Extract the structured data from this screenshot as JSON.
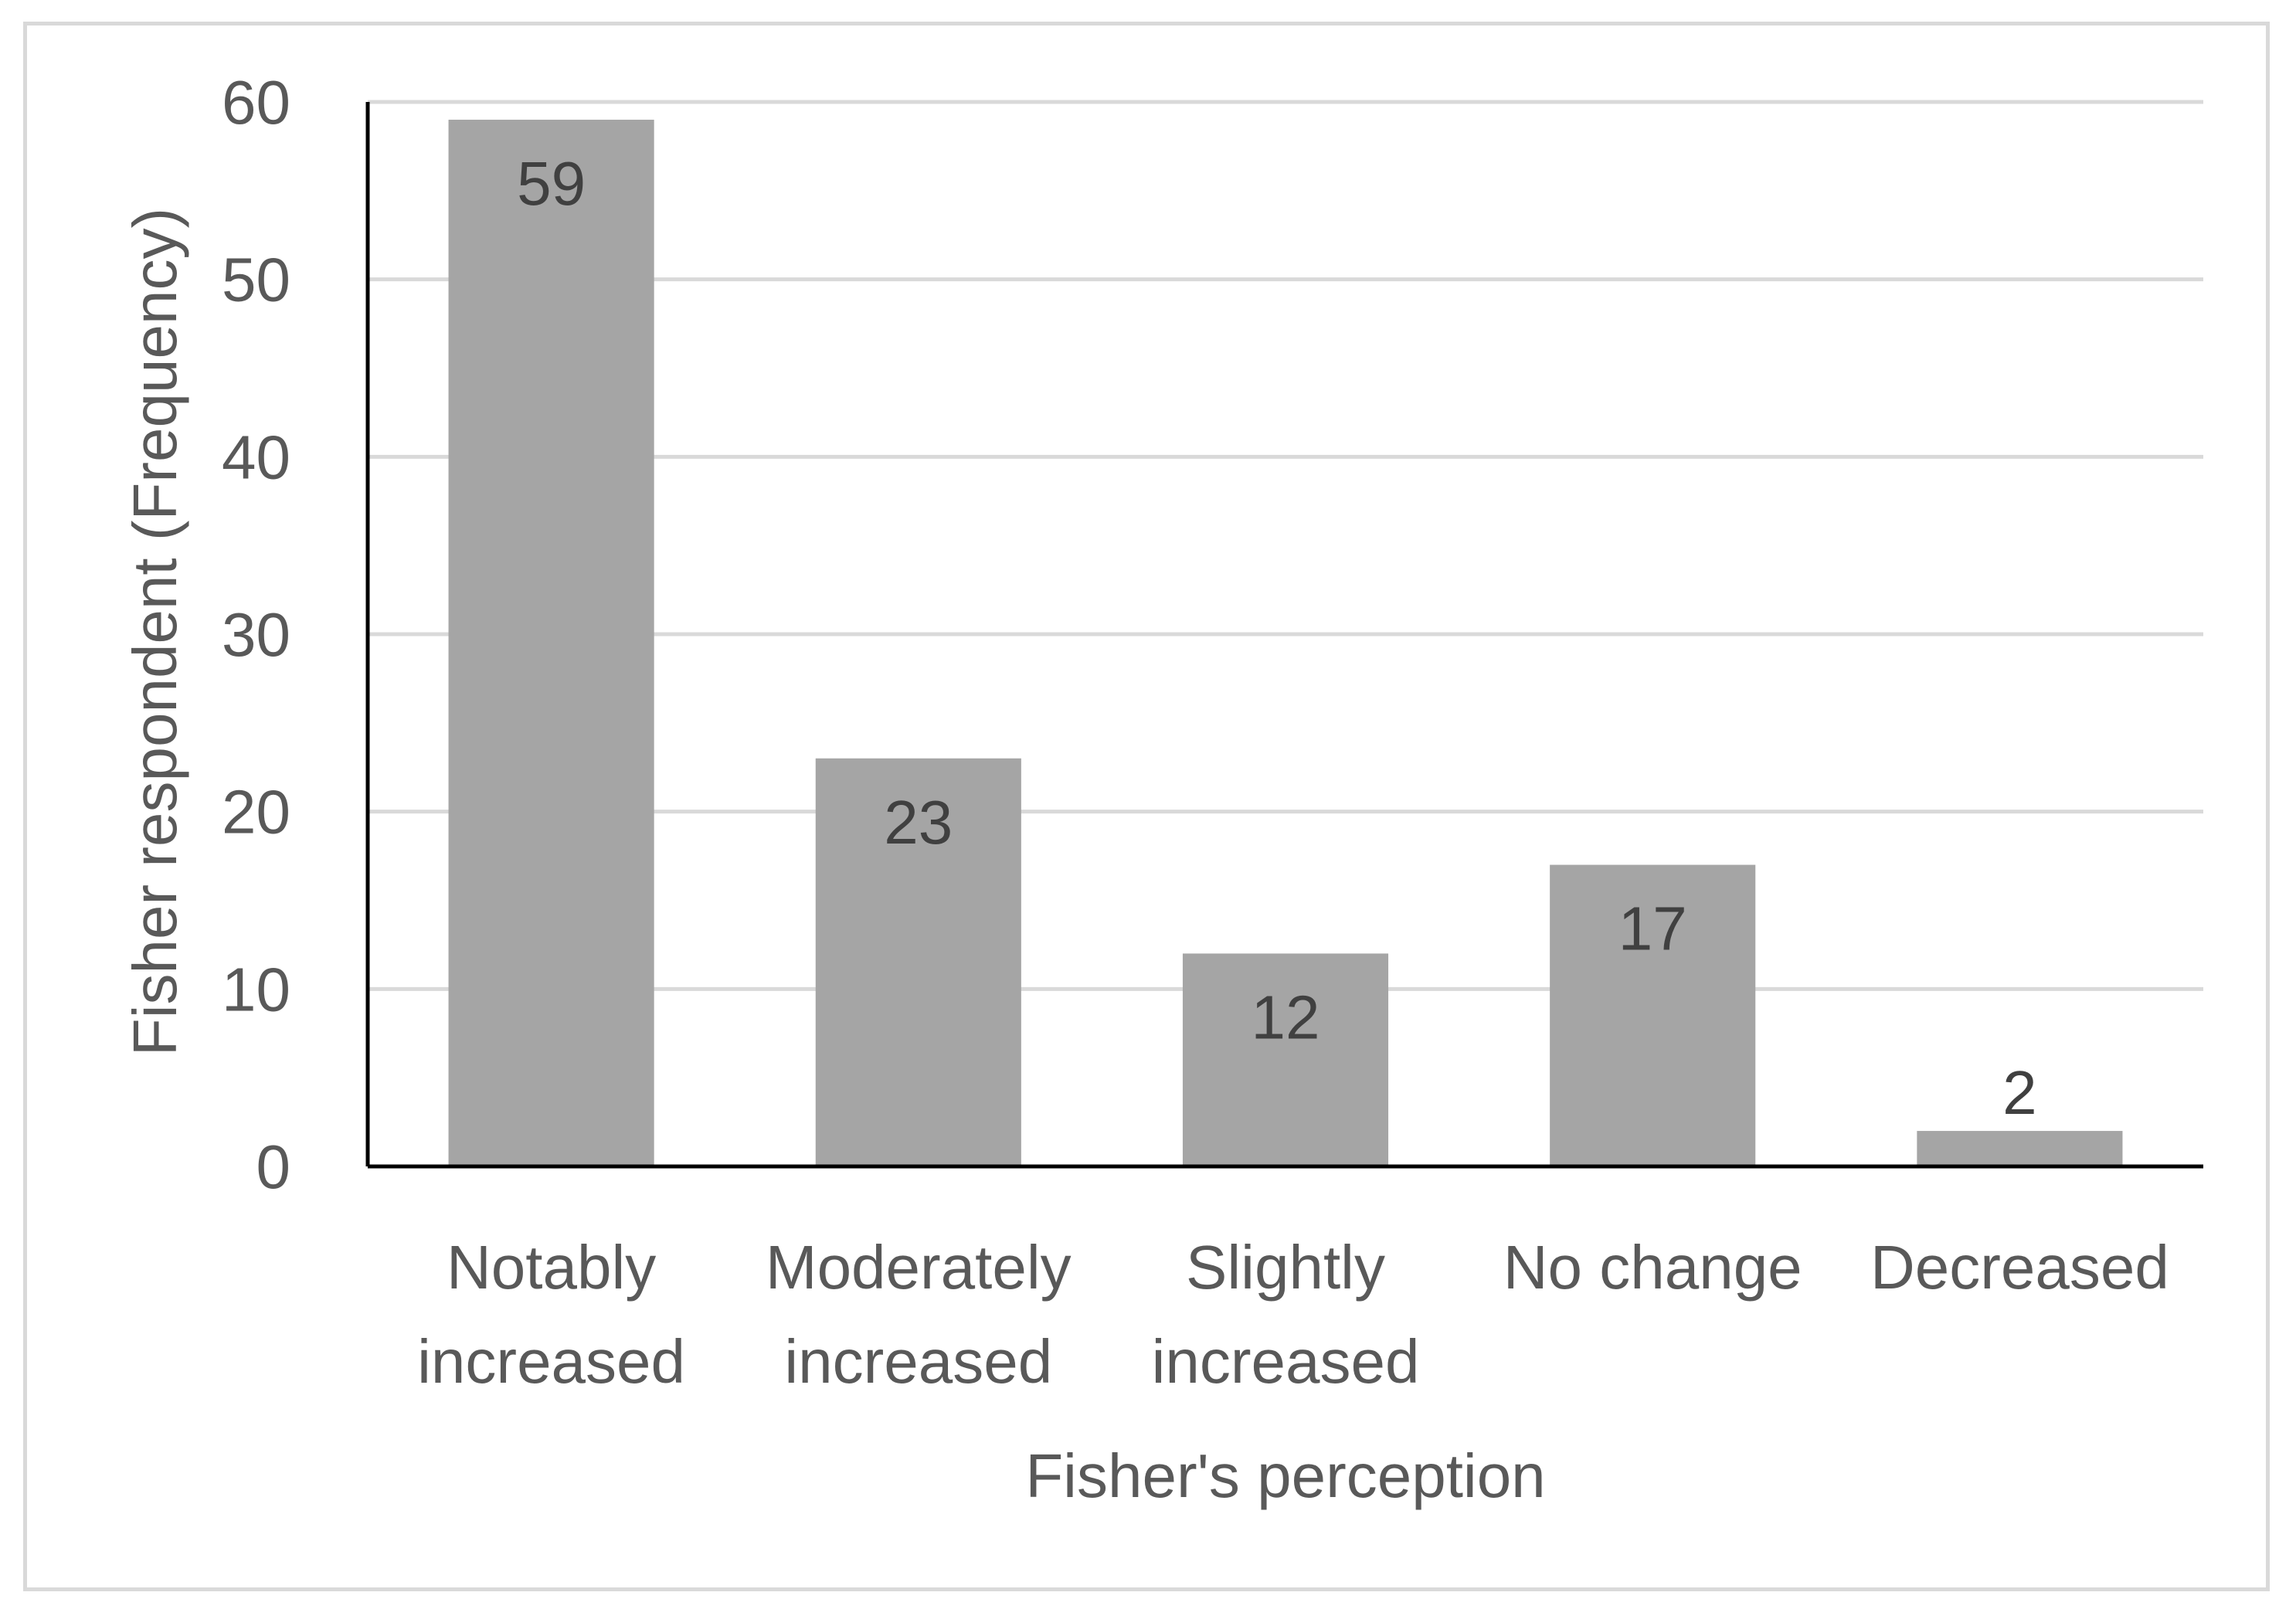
{
  "chart_data": {
    "type": "bar",
    "categories": [
      [
        "Notably",
        "increased"
      ],
      [
        "Moderately",
        "increased"
      ],
      [
        "Slightly",
        "increased"
      ],
      [
        "No change"
      ],
      [
        "Decreased"
      ]
    ],
    "values": [
      59,
      23,
      12,
      17,
      2
    ],
    "data_labels": [
      "59",
      "23",
      "12",
      "17",
      "2"
    ],
    "title": "",
    "xlabel": "Fisher's perception",
    "ylabel": "Fisher respondent (Frequency)",
    "ylim": [
      0,
      60
    ],
    "yticks": [
      0,
      10,
      20,
      30,
      40,
      50,
      60
    ],
    "grid": true,
    "legend": "none",
    "colors": {
      "bar": "#a5a5a5",
      "grid": "#d9d9d9",
      "axis": "#000000",
      "text": "#595959",
      "data_label": "#404040"
    }
  }
}
